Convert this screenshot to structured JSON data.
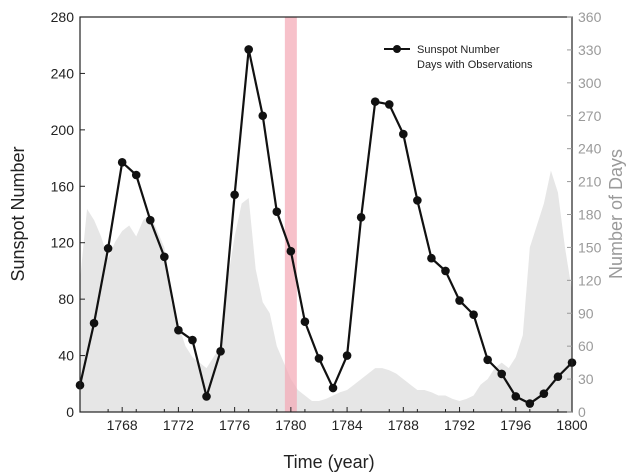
{
  "chart_data": {
    "type": "line",
    "xlabel": "Time (year)",
    "ylabel": "Sunspot Number",
    "y2label": "Number of Days",
    "xlim": [
      1765,
      1800
    ],
    "ylim": [
      0,
      280
    ],
    "y2lim": [
      0,
      360
    ],
    "xticks": [
      1768,
      1772,
      1776,
      1780,
      1784,
      1788,
      1792,
      1796,
      1800
    ],
    "xtick_labels": [
      "1768",
      "1772",
      "1776",
      "1780",
      "1784",
      "1788",
      "1792",
      "1796",
      "1800"
    ],
    "yticks": [
      0,
      40,
      80,
      120,
      160,
      200,
      240,
      280
    ],
    "ytick_labels": [
      "0",
      "40",
      "80",
      "120",
      "160",
      "200",
      "240",
      "280"
    ],
    "y2ticks": [
      0,
      30,
      60,
      90,
      120,
      150,
      180,
      210,
      240,
      270,
      300,
      330,
      360
    ],
    "y2tick_labels": [
      "0",
      "30",
      "60",
      "90",
      "120",
      "150",
      "180",
      "210",
      "240",
      "270",
      "300",
      "330",
      "360"
    ],
    "legend": {
      "position": "top-right",
      "entries": [
        "Sunspot Number",
        "Days with Observations"
      ]
    },
    "highlight": {
      "x": 1780,
      "color": "#f4a6b4"
    },
    "series": [
      {
        "name": "Sunspot Number",
        "axis": "left",
        "color": "#111111",
        "x": [
          1765,
          1766,
          1767,
          1768,
          1769,
          1770,
          1771,
          1772,
          1773,
          1774,
          1775,
          1776,
          1777,
          1778,
          1779,
          1780,
          1781,
          1782,
          1783,
          1784,
          1785,
          1786,
          1787,
          1788,
          1789,
          1790,
          1791,
          1792,
          1793,
          1794,
          1795,
          1796,
          1797,
          1798,
          1799,
          1800
        ],
        "y": [
          19,
          63,
          116,
          177,
          168,
          136,
          110,
          58,
          51,
          11,
          43,
          154,
          257,
          210,
          142,
          114,
          64,
          38,
          17,
          40,
          138,
          220,
          218,
          197,
          150,
          109,
          100,
          79,
          69,
          37,
          27,
          11,
          6,
          13,
          25,
          35
        ]
      },
      {
        "name": "Days with Observations",
        "axis": "right",
        "type": "area",
        "color": "#e6e6e6",
        "x": [
          1765,
          1765.5,
          1766,
          1766.5,
          1767,
          1767.5,
          1768,
          1768.5,
          1769,
          1769.5,
          1770,
          1770.5,
          1771,
          1771.5,
          1772,
          1772.5,
          1773,
          1773.5,
          1774,
          1774.5,
          1775,
          1775.5,
          1776,
          1776.5,
          1777,
          1777.5,
          1778,
          1778.5,
          1779,
          1779.5,
          1780,
          1780.5,
          1781,
          1781.5,
          1782,
          1782.5,
          1783,
          1783.5,
          1784,
          1784.5,
          1785,
          1785.5,
          1786,
          1786.5,
          1787,
          1787.5,
          1788,
          1788.5,
          1789,
          1789.5,
          1790,
          1790.5,
          1791,
          1791.5,
          1792,
          1792.5,
          1793,
          1793.5,
          1794,
          1794.5,
          1795,
          1795.5,
          1796,
          1796.5,
          1797,
          1797.5,
          1798,
          1798.5,
          1799,
          1799.5,
          1800
        ],
        "y": [
          120,
          185,
          175,
          160,
          140,
          155,
          165,
          170,
          160,
          175,
          180,
          165,
          150,
          100,
          80,
          60,
          50,
          45,
          40,
          50,
          60,
          120,
          160,
          190,
          195,
          130,
          100,
          90,
          60,
          45,
          30,
          20,
          15,
          10,
          10,
          12,
          15,
          18,
          20,
          25,
          30,
          35,
          40,
          40,
          38,
          35,
          30,
          25,
          20,
          20,
          18,
          15,
          15,
          12,
          10,
          12,
          15,
          25,
          30,
          40,
          45,
          40,
          50,
          70,
          150,
          170,
          190,
          220,
          200,
          150,
          110
        ]
      }
    ]
  }
}
